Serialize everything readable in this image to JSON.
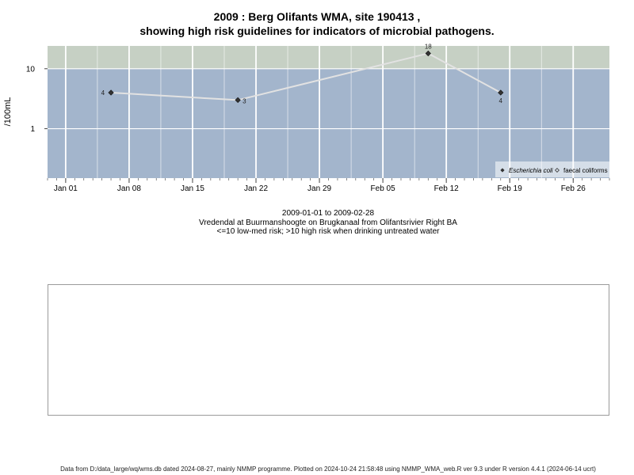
{
  "title_line1": "2009 : Berg Olifants WMA, site 190413 ,",
  "title_line2": "showing high risk guidelines for indicators of microbial pathogens.",
  "caption": {
    "line1": "2009-01-01 to 2009-02-28",
    "line2": "Vredendal at Buurmanshoogte on Brugkanaal from Olifantsrivier Right BA",
    "line3": "<=10 low-med risk; >10 high risk when drinking untreated water"
  },
  "footer": "Data from D:/data_large/wq/wms.db dated 2024-08-27, mainly NMMP programme. Plotted on 2024-10-24 21:58:48 using NMMP_WMA_web.R ver 9.3 under R version 4.4.1 (2024-06-14 ucrt)",
  "chart_data": {
    "type": "line",
    "ylabel": "/100mL",
    "xlabel": "",
    "yscale": "log",
    "xlim": [
      "2008-12-30",
      "2009-03-02"
    ],
    "ylim": [
      0.15,
      24
    ],
    "y_ticks": [
      {
        "value": 1,
        "label": "1"
      },
      {
        "value": 10,
        "label": "10"
      }
    ],
    "x_ticks": [
      {
        "date": "2009-01-01",
        "label": "Jan 01"
      },
      {
        "date": "2009-01-08",
        "label": "Jan 08"
      },
      {
        "date": "2009-01-15",
        "label": "Jan 15"
      },
      {
        "date": "2009-01-22",
        "label": "Jan 22"
      },
      {
        "date": "2009-01-29",
        "label": "Jan 29"
      },
      {
        "date": "2009-02-05",
        "label": "Feb 05"
      },
      {
        "date": "2009-02-12",
        "label": "Feb 12"
      },
      {
        "date": "2009-02-19",
        "label": "Feb 19"
      },
      {
        "date": "2009-02-26",
        "label": "Feb 26"
      }
    ],
    "high_risk_threshold": 10,
    "colors": {
      "low_risk_band": "#a3b5cc",
      "high_risk_band": "#c6d0c4",
      "gridline": "#ffffff",
      "line": "#e2e2e2",
      "marker": "#333333"
    },
    "grid": true,
    "legend_position": "bottom-right",
    "series": [
      {
        "name": "Escherichia coli",
        "marker": "filled-diamond",
        "points": [
          {
            "x": "2009-01-06",
            "y": 4,
            "label": "4"
          },
          {
            "x": "2009-01-20",
            "y": 3,
            "label": "3"
          },
          {
            "x": "2009-02-10",
            "y": 18,
            "label": "18"
          },
          {
            "x": "2009-02-18",
            "y": 4,
            "label": "4"
          }
        ]
      },
      {
        "name": "faecal coliforms",
        "marker": "open-diamond",
        "points": []
      }
    ]
  }
}
